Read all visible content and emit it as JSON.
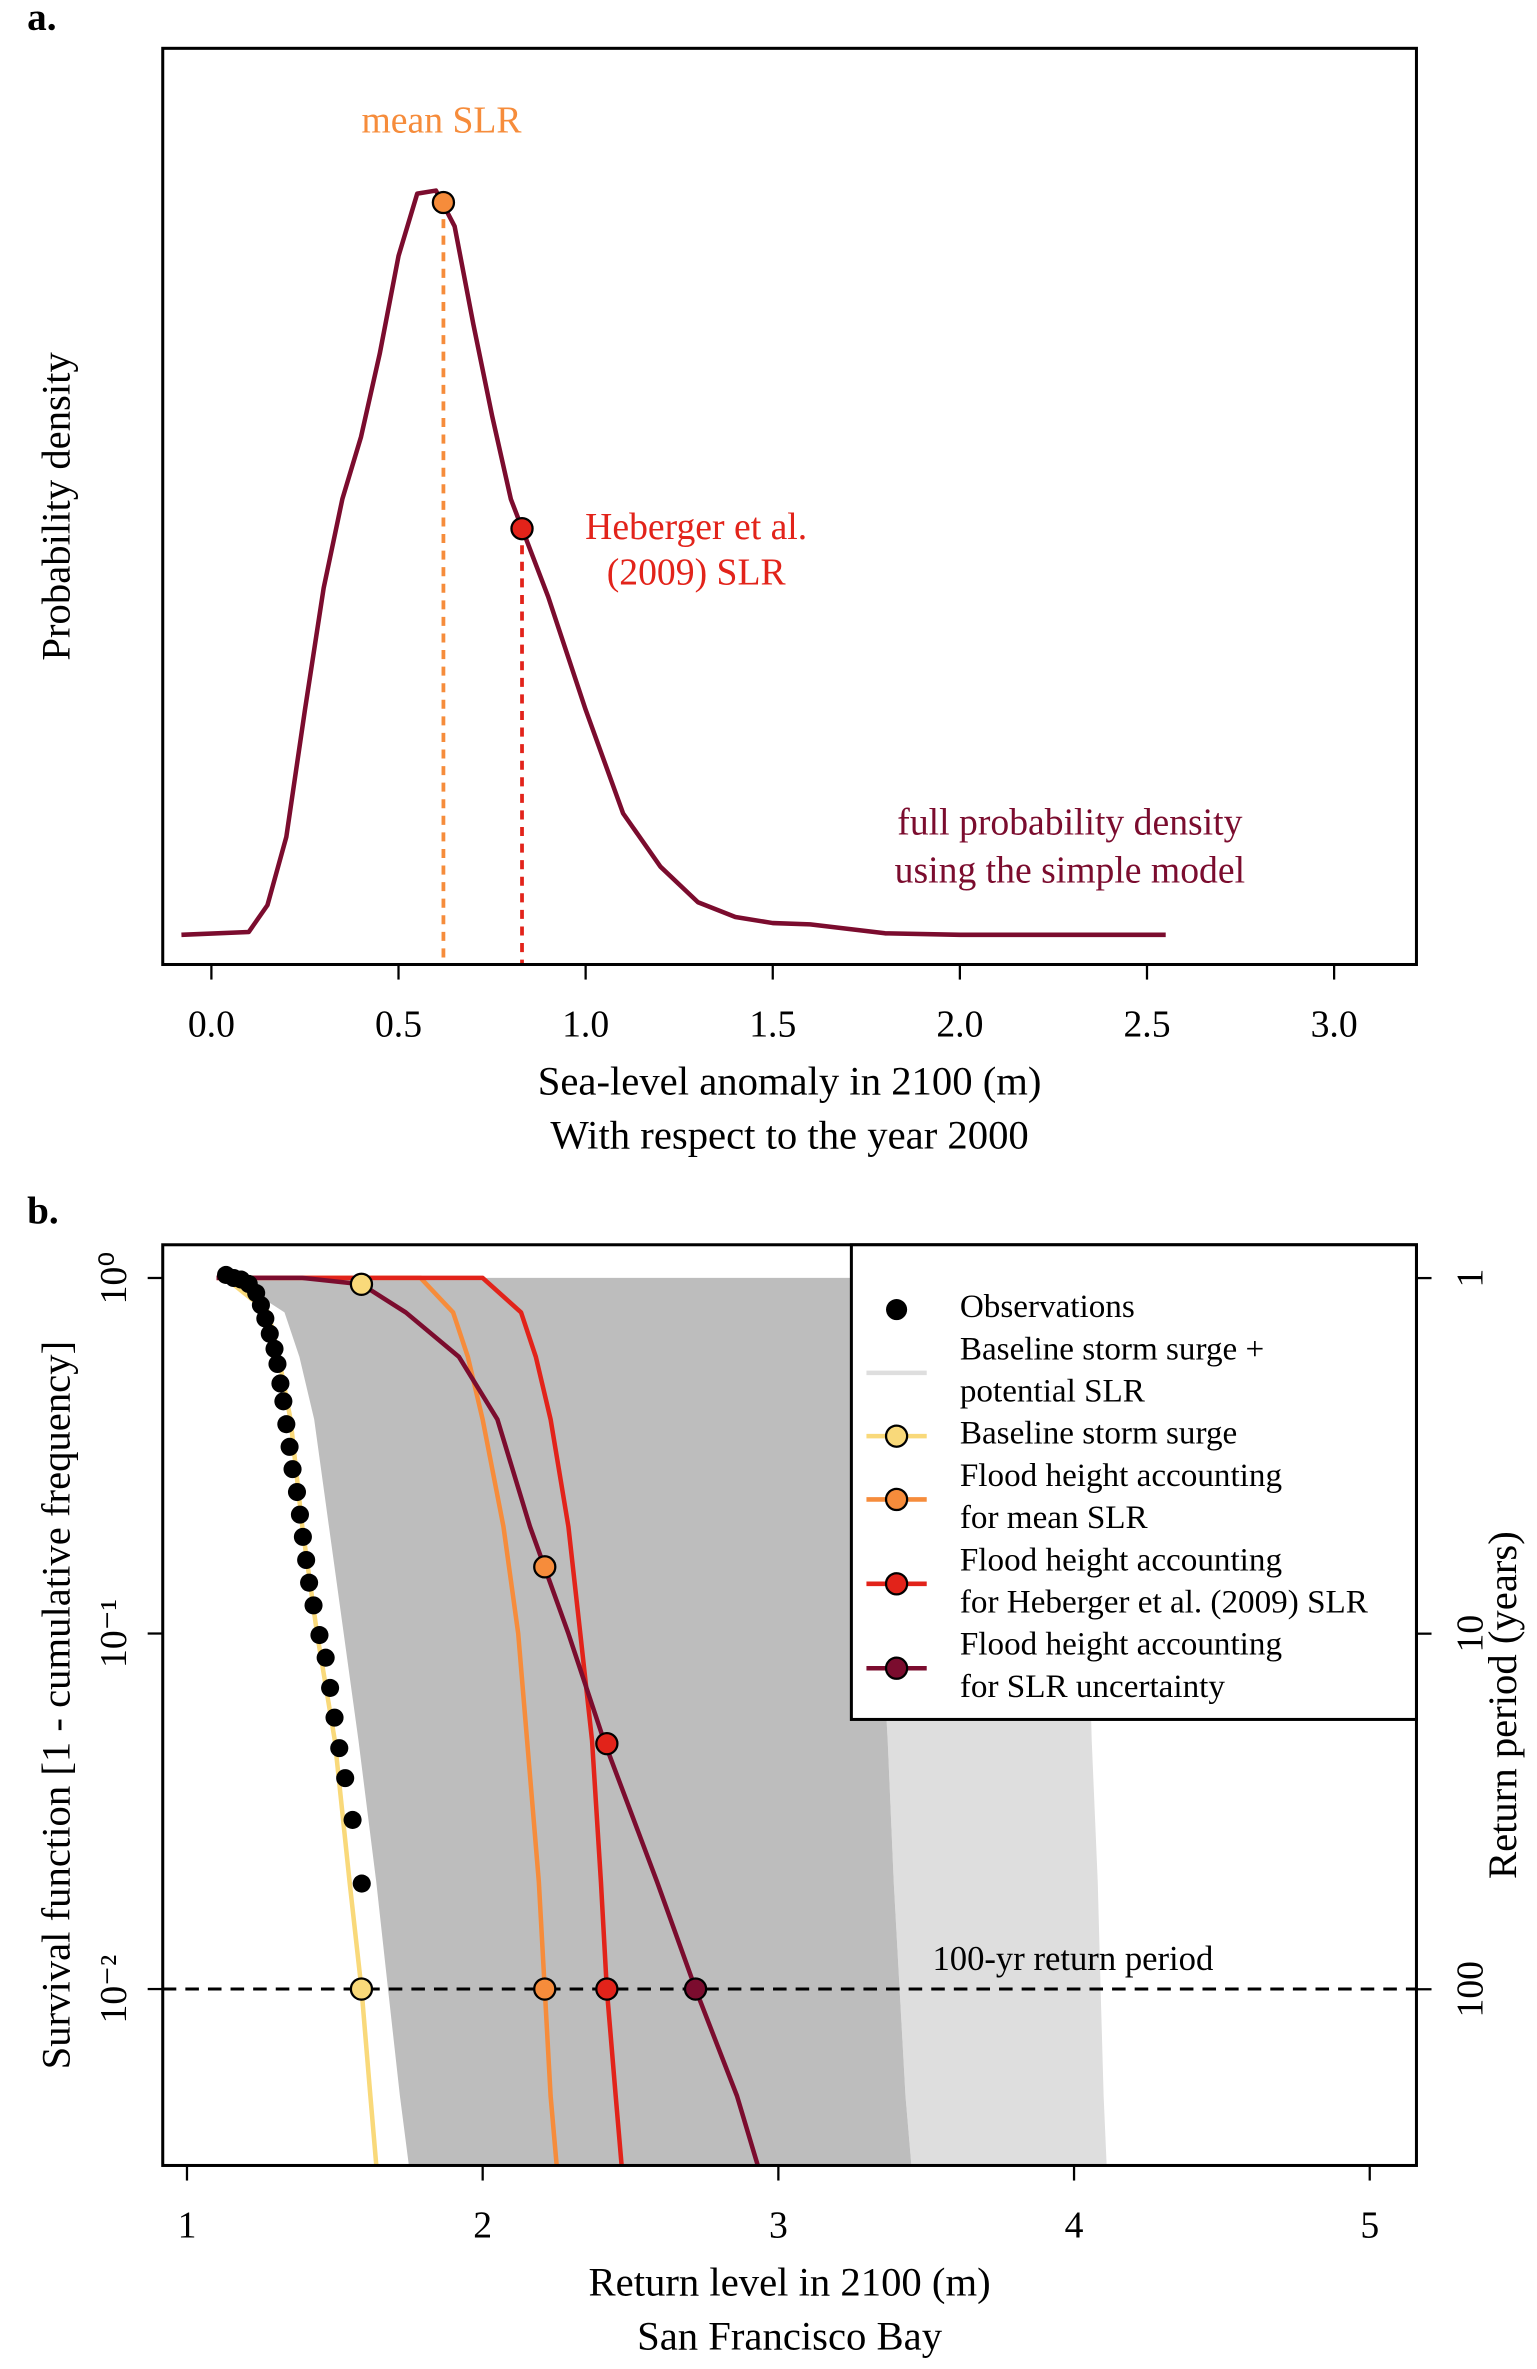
{
  "chart_data": [
    {
      "type": "line",
      "label": "a.",
      "ylabel": "Probability density",
      "xlabel": [
        "Sea-level anomaly in 2100 (m)",
        "With respect to the year 2000"
      ],
      "xlim": [
        -0.13,
        3.22
      ],
      "ylim": [
        -0.1,
        2.99
      ],
      "xticks": [
        {
          "value": 0,
          "label": "0.0"
        },
        0.5,
        {
          "value": 1,
          "label": "1.0"
        },
        1.5,
        {
          "value": 2,
          "label": "2.0"
        },
        2.5,
        {
          "value": 3,
          "label": "3.0"
        }
      ],
      "series": [
        {
          "color": "#7b0c2e",
          "x": [
            -0.08,
            0.1,
            0.15,
            0.2,
            0.25,
            0.3,
            0.35,
            0.4,
            0.45,
            0.5,
            0.55,
            0.6,
            0.65,
            0.7,
            0.75,
            0.8,
            0.9,
            1.0,
            1.1,
            1.2,
            1.3,
            1.4,
            1.5,
            1.6,
            1.8,
            2.0,
            2.55
          ],
          "values": [
            0,
            0.01,
            0.1,
            0.33,
            0.76,
            1.17,
            1.47,
            1.68,
            1.96,
            2.29,
            2.5,
            2.51,
            2.39,
            2.06,
            1.75,
            1.47,
            1.14,
            0.76,
            0.41,
            0.23,
            0.11,
            0.06,
            0.04,
            0.035,
            0.005,
            0,
            0
          ]
        }
      ],
      "markers": [
        {
          "x": 0.62,
          "value": 2.47,
          "color": "#f68c3b",
          "label": [
            "mean SLR"
          ]
        },
        {
          "x": 0.83,
          "value": 1.37,
          "color": "#e2231a",
          "label": [
            "Heberger et al.",
            "(2009) SLR"
          ]
        }
      ],
      "annotations": [
        {
          "text": [
            "full probability density",
            "using the simple model"
          ],
          "color": "#7b0c2e"
        }
      ]
    },
    {
      "type": "line",
      "label": "b.",
      "ylog": true,
      "xlabel": [
        "Return level in 2100 (m)",
        "San Francisco Bay"
      ],
      "ylabel": "Survival function [1 - cumulative frequency]",
      "y2label": "Return period (years)",
      "xlim": [
        0.918,
        5.158
      ],
      "ylim": [
        0.00319,
        1.24
      ],
      "xticks": [
        1,
        2,
        3,
        4,
        5
      ],
      "yticks": [
        {
          "value": 1,
          "label": "10⁰"
        },
        {
          "value": 0.1,
          "label": "10⁻¹"
        },
        {
          "value": 0.01,
          "label": "10⁻²"
        }
      ],
      "y2lim": [
        0.806,
        313
      ],
      "y2ticks": [
        1,
        10,
        100
      ],
      "legend": "top-right",
      "observations": {
        "name": [
          "Observations"
        ],
        "color": "#000000",
        "x": [
          1.132,
          1.158,
          1.183,
          1.209,
          1.234,
          1.25,
          1.265,
          1.28,
          1.296,
          1.306,
          1.316,
          1.326,
          1.336,
          1.347,
          1.357,
          1.372,
          1.382,
          1.392,
          1.403,
          1.413,
          1.428,
          1.448,
          1.469,
          1.484,
          1.499,
          1.515,
          1.535,
          1.56,
          1.591
        ],
        "values": [
          1.02,
          1.0,
          0.99,
          0.962,
          0.907,
          0.839,
          0.769,
          0.697,
          0.632,
          0.573,
          0.505,
          0.45,
          0.388,
          0.335,
          0.29,
          0.25,
          0.216,
          0.187,
          0.161,
          0.139,
          0.12,
          0.099,
          0.0855,
          0.0703,
          0.058,
          0.0476,
          0.0392,
          0.0299,
          0.0198
        ]
      },
      "ensemble": {
        "name": [
          "Baseline storm surge +",
          "potential SLR"
        ],
        "color": "#bdbdbd",
        "outer_color": "#dedede",
        "values": [
          1,
          0.8,
          0.6,
          0.4,
          0.2,
          0.1,
          0.05,
          0.02,
          0.01,
          0.005,
          0.0032
        ],
        "x_low": [
          1.15,
          1.33,
          1.38,
          1.43,
          1.48,
          1.53,
          1.58,
          1.64,
          1.68,
          1.72,
          1.75
        ],
        "x_high": [
          3.25,
          3.27,
          3.29,
          3.31,
          3.33,
          3.35,
          3.37,
          3.39,
          3.41,
          3.43,
          3.45
        ],
        "x_outer": [
          4.0,
          4.01,
          4.02,
          4.03,
          4.04,
          4.05,
          4.06,
          4.08,
          4.09,
          4.1,
          4.11
        ]
      },
      "series": [
        {
          "name": [
            "Baseline storm surge"
          ],
          "color": "#f9d97a",
          "x": [
            1.13,
            1.275,
            1.31,
            1.35,
            1.39,
            1.44,
            1.5,
            1.55,
            1.59,
            1.62,
            1.64
          ],
          "values": [
            1,
            0.8,
            0.6,
            0.4,
            0.2,
            0.1,
            0.05,
            0.02,
            0.01,
            0.005,
            0.0032
          ]
        },
        {
          "name": [
            "Flood height accounting",
            "for mean SLR"
          ],
          "color": "#f68c3b",
          "x": [
            1.1,
            1.79,
            1.9,
            1.95,
            2.0,
            2.07,
            2.12,
            2.15,
            2.19,
            2.21,
            2.23,
            2.25
          ],
          "values": [
            1,
            1,
            0.8,
            0.6,
            0.4,
            0.2,
            0.1,
            0.05,
            0.02,
            0.01,
            0.005,
            0.0032
          ]
        },
        {
          "name": [
            "Flood height accounting",
            "for Heberger et al. (2009) SLR"
          ],
          "color": "#e2231a",
          "x": [
            1.1,
            2.0,
            2.13,
            2.18,
            2.23,
            2.29,
            2.33,
            2.37,
            2.4,
            2.42,
            2.45,
            2.47
          ],
          "values": [
            1,
            1,
            0.8,
            0.6,
            0.4,
            0.2,
            0.1,
            0.05,
            0.02,
            0.01,
            0.005,
            0.0032
          ]
        },
        {
          "name": [
            "Flood height accounting",
            "for SLR uncertainty"
          ],
          "color": "#7b0c2e",
          "x": [
            1.1,
            1.39,
            1.59,
            1.74,
            1.92,
            2.05,
            2.16,
            2.29,
            2.41,
            2.59,
            2.72,
            2.86,
            2.93
          ],
          "values": [
            1,
            1,
            0.96,
            0.8,
            0.6,
            0.4,
            0.2,
            0.1,
            0.05,
            0.02,
            0.01,
            0.005,
            0.0032
          ]
        }
      ],
      "points": [
        {
          "x": 1.59,
          "value": 0.96,
          "color": "#f9d97a"
        },
        {
          "x": 2.21,
          "value": 0.154,
          "color": "#f68c3b"
        },
        {
          "x": 2.42,
          "value": 0.049,
          "color": "#e2231a"
        },
        {
          "x": 1.59,
          "value": 0.01,
          "color": "#f9d97a"
        },
        {
          "x": 2.21,
          "value": 0.01,
          "color": "#f68c3b"
        },
        {
          "x": 2.42,
          "value": 0.01,
          "color": "#e2231a"
        },
        {
          "x": 2.72,
          "value": 0.01,
          "color": "#7b0c2e"
        }
      ],
      "hline": {
        "value": 0.01,
        "label": "100-yr return period"
      }
    }
  ]
}
